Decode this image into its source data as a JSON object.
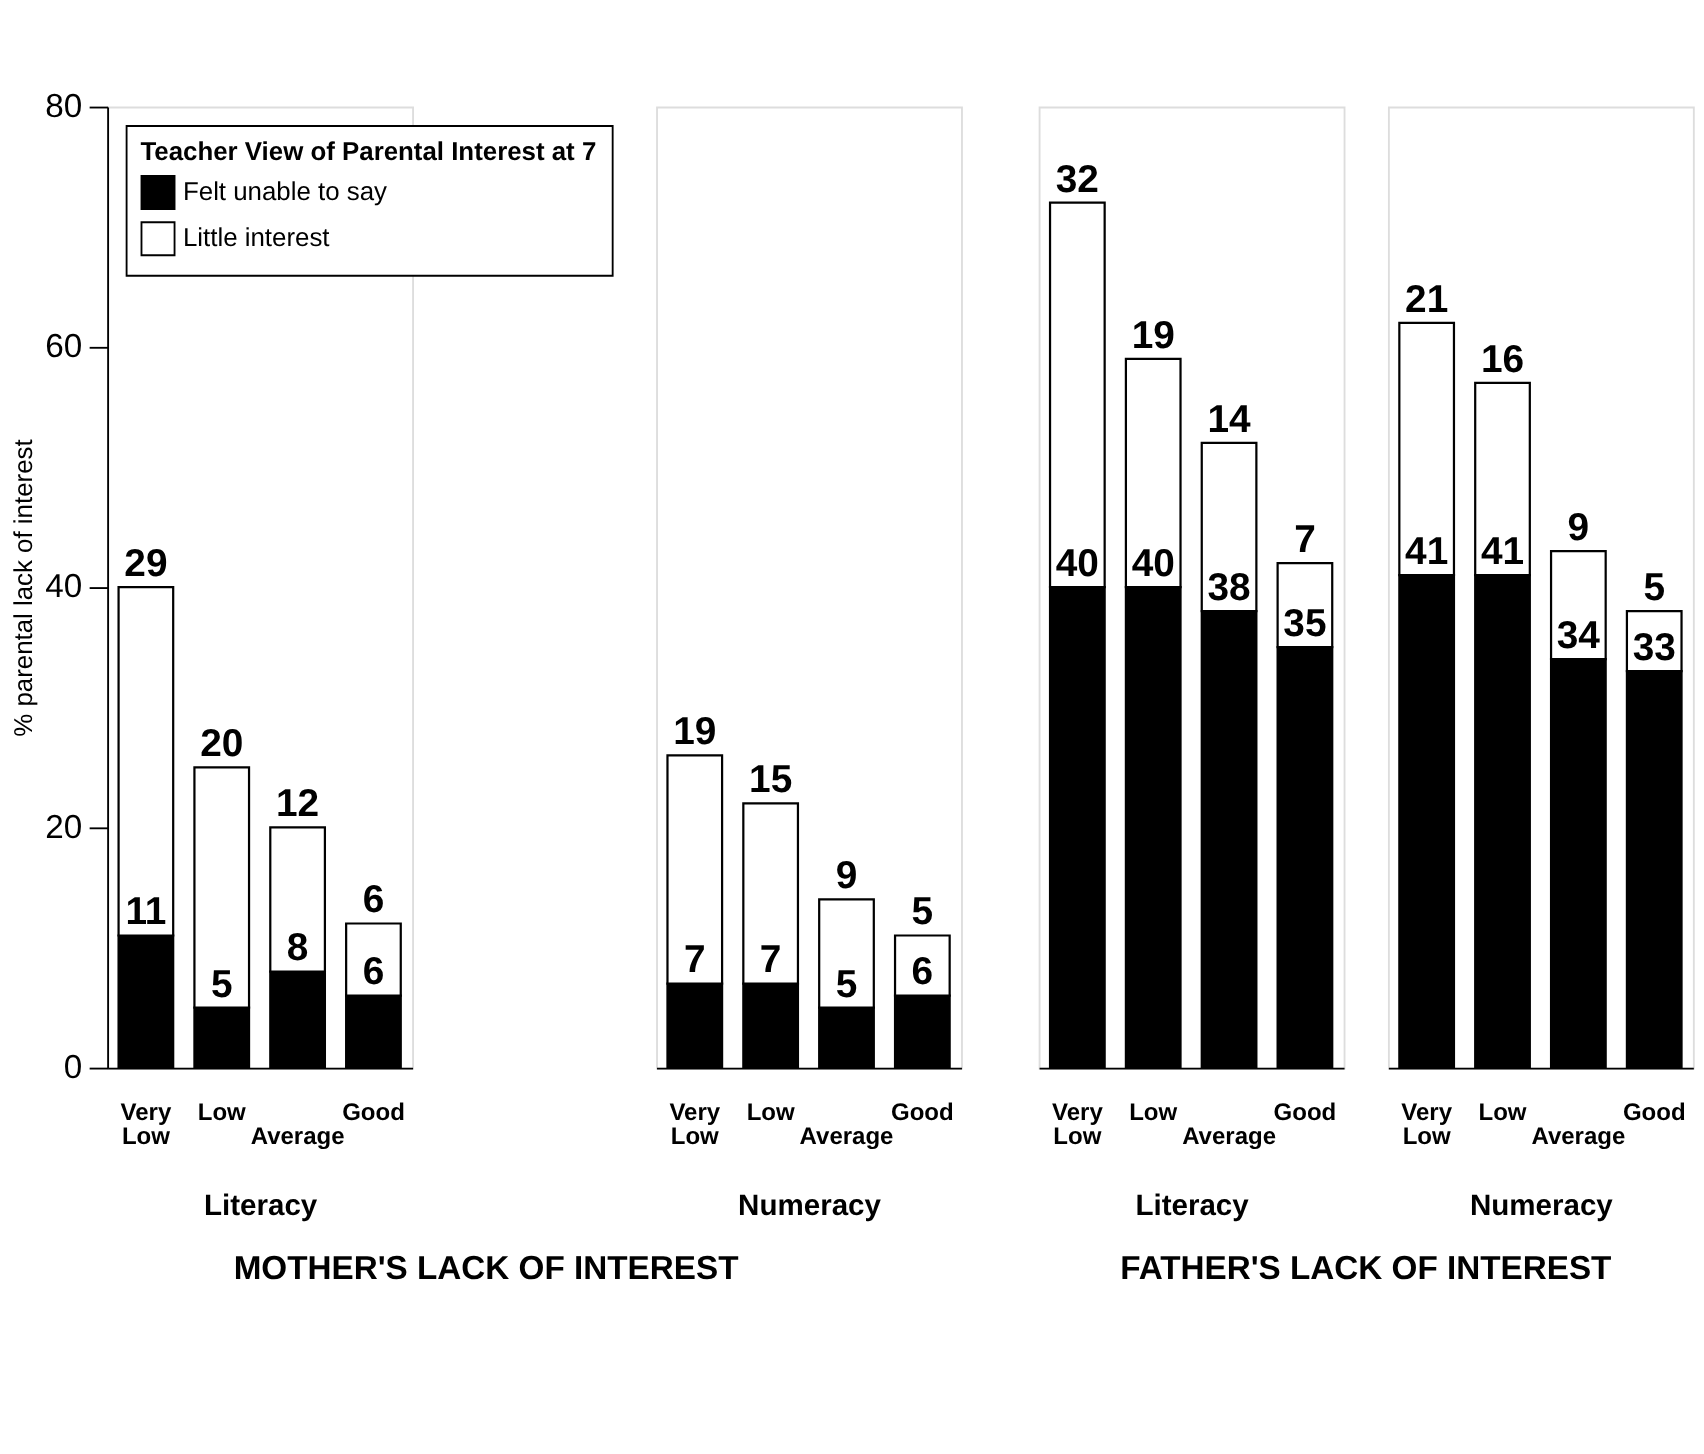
{
  "chart_data": [
    {
      "type": "bar",
      "stacked": true,
      "categories": [
        "Very Low",
        "Low",
        "Average",
        "Good"
      ],
      "xlabel": "Literacy",
      "ylabel": "% parental lack of interest",
      "ylim": [
        0,
        80
      ],
      "yticks": [
        0,
        20,
        40,
        60,
        80
      ],
      "legend": "top left",
      "legend_title": "Teacher View of Parental Interest at 7",
      "data_labels": true,
      "grid": false,
      "annotations": [
        "MOTHER'S LACK OF INTEREST"
      ],
      "series": [
        {
          "name": "Felt unable to say",
          "color": "#000000",
          "values": [
            11,
            5,
            8,
            6
          ]
        },
        {
          "name": "Little interest",
          "color": "#ffffff",
          "values": [
            29,
            20,
            12,
            6
          ]
        }
      ]
    },
    {
      "type": "bar",
      "stacked": true,
      "categories": [
        "Very Low",
        "Low",
        "Average",
        "Good"
      ],
      "xlabel": "Numeracy",
      "ylim": [
        0,
        80
      ],
      "tick_labels": "x",
      "data_labels": true,
      "grid": false,
      "series": [
        {
          "color": "#000000",
          "values": [
            7,
            7,
            5,
            6
          ]
        },
        {
          "color": "#ffffff",
          "values": [
            19,
            15,
            9,
            5
          ]
        }
      ]
    },
    {
      "type": "bar",
      "stacked": true,
      "categories": [
        "Very Low",
        "Low",
        "Average",
        "Good"
      ],
      "xlabel": "Literacy",
      "ylim": [
        0,
        80
      ],
      "tick_labels": "x",
      "data_labels": true,
      "grid": false,
      "annotations": [
        "FATHER'S LACK OF INTEREST"
      ],
      "series": [
        {
          "color": "#000000",
          "values": [
            40,
            40,
            38,
            35
          ]
        },
        {
          "color": "#ffffff",
          "values": [
            32,
            19,
            14,
            7
          ]
        }
      ]
    },
    {
      "type": "bar",
      "stacked": true,
      "categories": [
        "Very Low",
        "Low",
        "Average",
        "Good"
      ],
      "xlabel": "Numeracy",
      "ylim": [
        0,
        80
      ],
      "tick_labels": "x",
      "data_labels": true,
      "grid": false,
      "series": [
        {
          "color": "#000000",
          "values": [
            41,
            41,
            34,
            33
          ]
        },
        {
          "color": "#ffffff",
          "values": [
            21,
            16,
            9,
            5
          ]
        }
      ]
    }
  ]
}
